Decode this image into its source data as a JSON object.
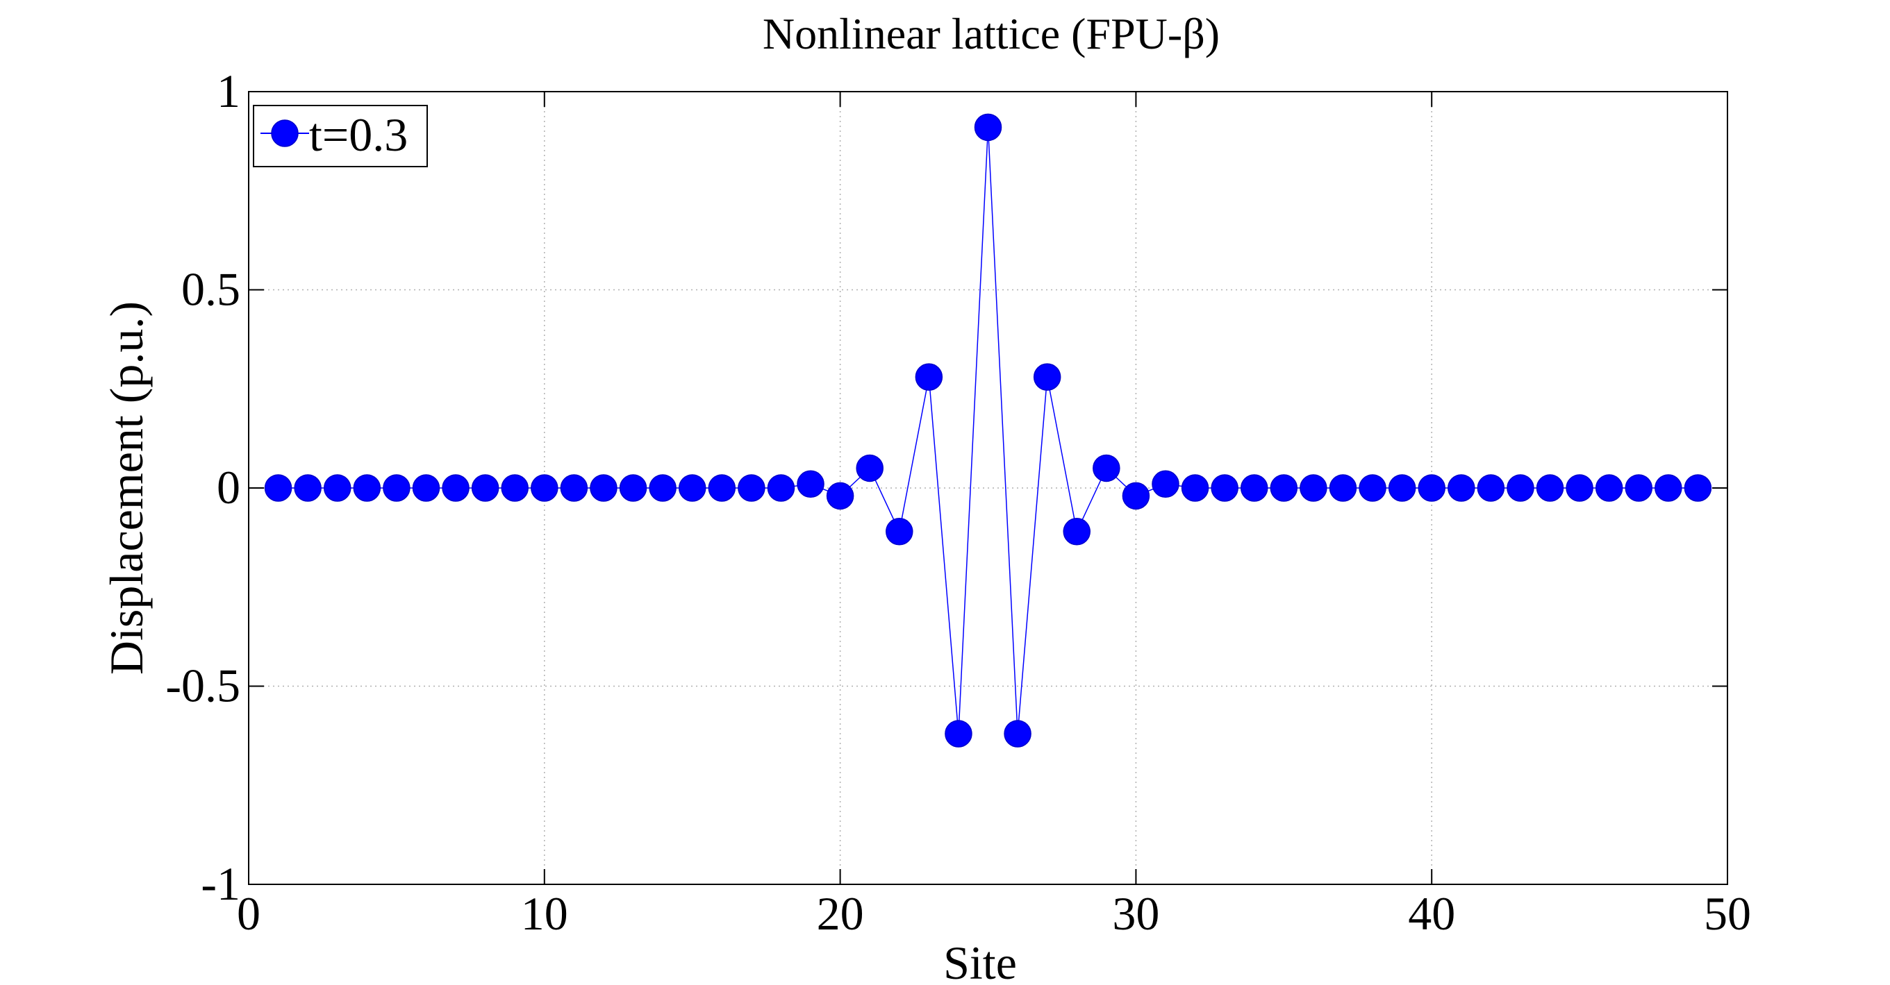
{
  "chart_data": {
    "type": "line",
    "title": "Nonlinear lattice (FPU-β)",
    "xlabel": "Site",
    "ylabel": "Displacement (p.u.)",
    "xlim": [
      0,
      50
    ],
    "ylim": [
      -1,
      1
    ],
    "xticks": [
      0,
      10,
      20,
      30,
      40,
      50
    ],
    "yticks": [
      -1,
      -0.5,
      0,
      0.5,
      1
    ],
    "xtick_labels": [
      "0",
      "10",
      "20",
      "30",
      "40",
      "50"
    ],
    "ytick_labels": [
      "-1",
      "-0.5",
      "0",
      "0.5",
      "1"
    ],
    "grid": true,
    "legend_position": "top-left",
    "series": [
      {
        "name": "t=0.3",
        "color": "#0000ff",
        "marker": "filled-circle",
        "x": [
          1,
          2,
          3,
          4,
          5,
          6,
          7,
          8,
          9,
          10,
          11,
          12,
          13,
          14,
          15,
          16,
          17,
          18,
          19,
          20,
          21,
          22,
          23,
          24,
          25,
          26,
          27,
          28,
          29,
          30,
          31,
          32,
          33,
          34,
          35,
          36,
          37,
          38,
          39,
          40,
          41,
          42,
          43,
          44,
          45,
          46,
          47,
          48,
          49
        ],
        "y": [
          0,
          0,
          0,
          0,
          0,
          0,
          0,
          0,
          0,
          0,
          0,
          0,
          0,
          0,
          0,
          0,
          0,
          0,
          0.01,
          -0.02,
          0.05,
          -0.11,
          0.28,
          -0.62,
          0.91,
          -0.62,
          0.28,
          -0.11,
          0.05,
          -0.02,
          0.01,
          0,
          0,
          0,
          0,
          0,
          0,
          0,
          0,
          0,
          0,
          0,
          0,
          0,
          0,
          0,
          0,
          0,
          0
        ]
      }
    ]
  }
}
